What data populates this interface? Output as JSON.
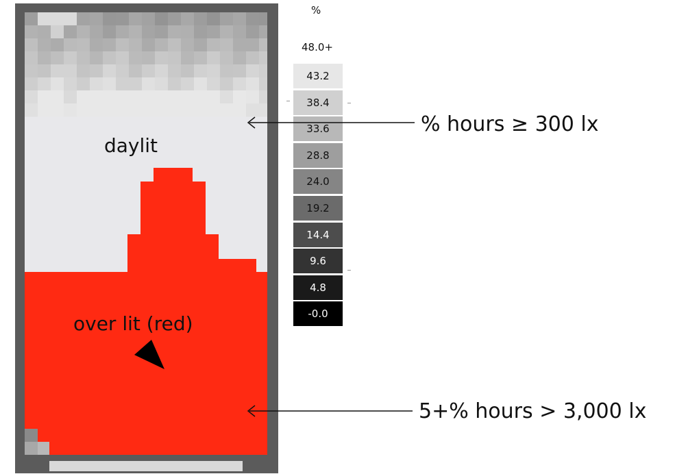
{
  "map": {
    "region_labels": {
      "daylit": "daylit",
      "overlit": "over lit (red)"
    },
    "colors": {
      "frame": "#5b5b5b",
      "daylit": "#e8e8eb",
      "overlit": "#ff2a12"
    }
  },
  "legend": {
    "unit": "%",
    "max_label": "48.0+",
    "steps": [
      {
        "label": "43.2",
        "color": "#e7e7e7",
        "text_color": "#111111"
      },
      {
        "label": "38.4",
        "color": "#d0d0d0",
        "text_color": "#111111"
      },
      {
        "label": "33.6",
        "color": "#b8b8b8",
        "text_color": "#111111"
      },
      {
        "label": "28.8",
        "color": "#9e9e9e",
        "text_color": "#111111"
      },
      {
        "label": "24.0",
        "color": "#858585",
        "text_color": "#111111"
      },
      {
        "label": "19.2",
        "color": "#6b6b6b",
        "text_color": "#111111"
      },
      {
        "label": "14.4",
        "color": "#4d4d4d",
        "text_color": "#ffffff"
      },
      {
        "label": "9.6",
        "color": "#333333",
        "text_color": "#ffffff"
      },
      {
        "label": "4.8",
        "color": "#1a1a1a",
        "text_color": "#ffffff"
      },
      {
        "label": "-0.0",
        "color": "#000000",
        "text_color": "#ffffff"
      }
    ]
  },
  "callouts": {
    "daylit": "% hours ≥ 300 lx",
    "overlit": "5+% hours > 3,000 lx"
  }
}
